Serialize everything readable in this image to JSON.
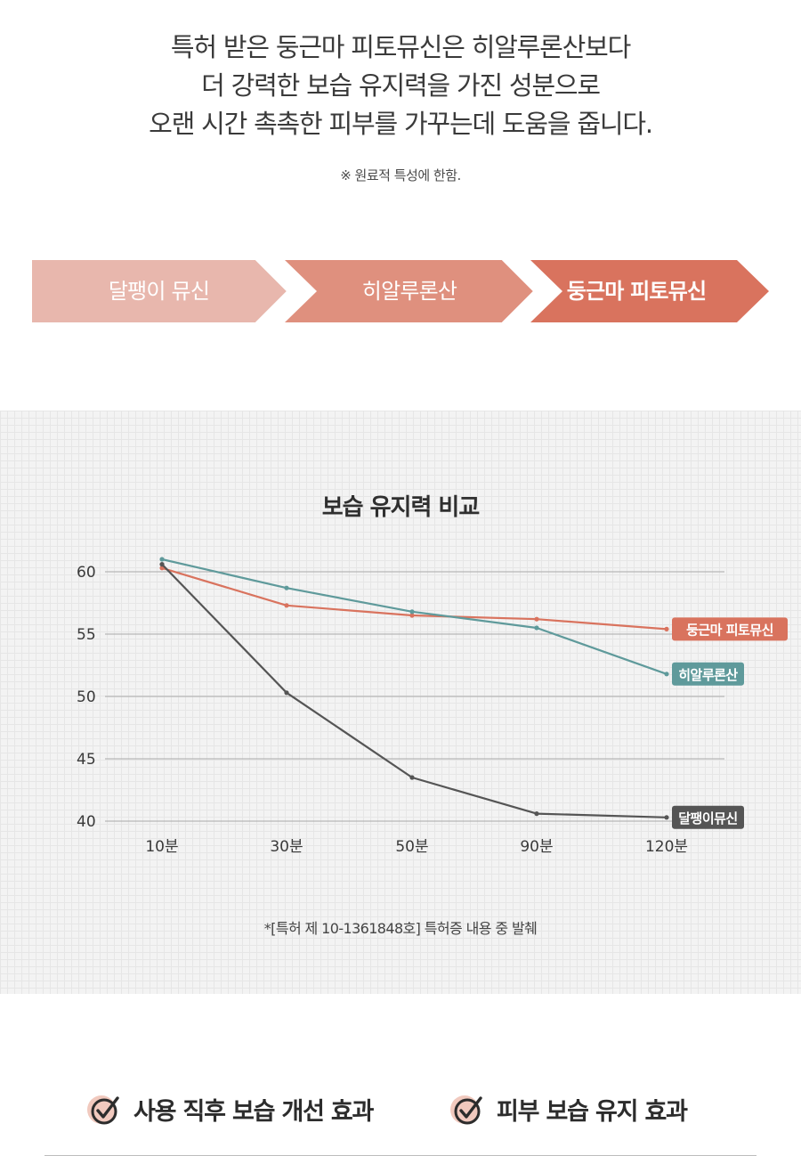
{
  "headline": {
    "lines": [
      "특허 받은 둥근마 피토뮤신은 히알루론산보다",
      "더 강력한 보습 유지력을 가진 성분으로",
      "오랜 시간 촉촉한 피부를 가꾸는데 도움을 줍니다."
    ],
    "note": "※ 원료적 특성에 한함."
  },
  "steps": {
    "items": [
      {
        "label": "달팽이 뮤신",
        "color": "#e8b7ad"
      },
      {
        "label": "히알루론산",
        "color": "#df907e"
      },
      {
        "label": "둥근마 피토뮤신",
        "color": "#d9735e"
      }
    ]
  },
  "chart_data": {
    "type": "line",
    "title": "보습 유지력 비교",
    "categories": [
      "10분",
      "30분",
      "50분",
      "90분",
      "120분"
    ],
    "yticks": [
      60,
      55,
      50,
      45,
      40
    ],
    "ylim": [
      40,
      61
    ],
    "grid": true,
    "legend": "right-inline",
    "series": [
      {
        "name": "둥근마 피토뮤신",
        "values": [
          60.3,
          57.3,
          56.5,
          56.2,
          55.4
        ],
        "color": "#d9735e"
      },
      {
        "name": "히알루론산",
        "values": [
          61.0,
          58.7,
          56.8,
          55.5,
          51.8
        ],
        "color": "#5f9a9b"
      },
      {
        "name": "달팽이뮤신",
        "values": [
          60.6,
          50.3,
          43.5,
          40.6,
          40.3
        ],
        "color": "#555555"
      }
    ],
    "footnote": "*[특허 제 10-1361848호] 특허증 내용 중 발췌"
  },
  "benefits": {
    "items": [
      {
        "label": "사용 직후 보습 개선 효과"
      },
      {
        "label": "피부 보습 유지 효과"
      }
    ]
  }
}
